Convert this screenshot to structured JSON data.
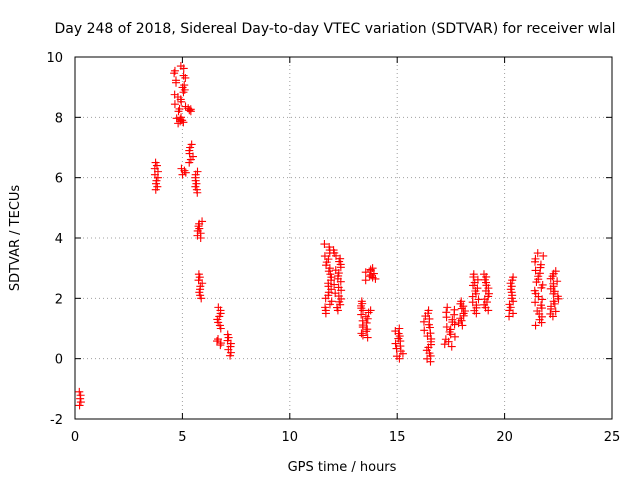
{
  "chart_data": {
    "type": "scatter",
    "title": "Day 248 of 2018, Sidereal Day-to-day VTEC variation (SDTVAR) for receiver wlal",
    "xlabel": "GPS time / hours",
    "ylabel": "SDTVAR / TECUs",
    "xlim": [
      0,
      25
    ],
    "ylim": [
      -2,
      10
    ],
    "xticks": [
      0,
      5,
      10,
      15,
      20,
      25
    ],
    "yticks": [
      -2,
      0,
      2,
      4,
      6,
      8,
      10
    ],
    "grid": true,
    "marker": "+",
    "marker_color": "#ff0000",
    "clusters": [
      {
        "x": 0.2,
        "x2": 0.3,
        "y": [
          -1.1,
          -1.55
        ]
      },
      {
        "x": 3.7,
        "x2": 3.9,
        "y": [
          5.6,
          6.5
        ]
      },
      {
        "x": 4.6,
        "x2": 5.2,
        "y": [
          8.2,
          9.7
        ]
      },
      {
        "x": 4.6,
        "x2": 5.1,
        "y": [
          7.8,
          8.0
        ]
      },
      {
        "x": 4.95,
        "x2": 5.2,
        "y": [
          6.1,
          6.3
        ]
      },
      {
        "x": 5.2,
        "x2": 5.5,
        "y": [
          8.2,
          8.3
        ]
      },
      {
        "x": 5.3,
        "x2": 5.5,
        "y": [
          6.5,
          7.1
        ]
      },
      {
        "x": 5.6,
        "x2": 5.75,
        "y": [
          5.5,
          6.2
        ]
      },
      {
        "x": 5.7,
        "x2": 6.0,
        "y": [
          4.0,
          4.55
        ]
      },
      {
        "x": 5.75,
        "x2": 5.95,
        "y": [
          2.0,
          2.8
        ]
      },
      {
        "x": 6.6,
        "x2": 6.8,
        "y": [
          1.0,
          1.7
        ]
      },
      {
        "x": 6.6,
        "x2": 6.8,
        "y": [
          0.45,
          0.65
        ]
      },
      {
        "x": 7.1,
        "x2": 7.3,
        "y": [
          0.1,
          0.8
        ]
      },
      {
        "x": 11.6,
        "x2": 11.95,
        "y": [
          1.5,
          3.8
        ]
      },
      {
        "x": 12.0,
        "x2": 12.4,
        "y": [
          1.6,
          3.6
        ]
      },
      {
        "x": 13.3,
        "x2": 13.5,
        "y": [
          1.6,
          1.9
        ]
      },
      {
        "x": 13.3,
        "x2": 13.9,
        "y": [
          0.7,
          1.6
        ]
      },
      {
        "x": 13.4,
        "x2": 14.0,
        "y": [
          2.6,
          3.0
        ]
      },
      {
        "x": 14.9,
        "x2": 15.3,
        "y": [
          0.0,
          1.0
        ]
      },
      {
        "x": 16.2,
        "x2": 16.6,
        "y": [
          -0.1,
          1.6
        ]
      },
      {
        "x": 17.2,
        "x2": 17.7,
        "y": [
          0.4,
          1.7
        ]
      },
      {
        "x": 17.8,
        "x2": 18.2,
        "y": [
          1.1,
          1.9
        ]
      },
      {
        "x": 18.5,
        "x2": 18.8,
        "y": [
          1.5,
          2.8
        ]
      },
      {
        "x": 19.0,
        "x2": 19.3,
        "y": [
          1.6,
          2.8
        ]
      },
      {
        "x": 20.2,
        "x2": 20.4,
        "y": [
          1.4,
          2.7
        ]
      },
      {
        "x": 21.4,
        "x2": 21.8,
        "y": [
          1.1,
          3.5
        ]
      },
      {
        "x": 22.1,
        "x2": 22.6,
        "y": [
          1.4,
          2.9
        ]
      }
    ]
  }
}
